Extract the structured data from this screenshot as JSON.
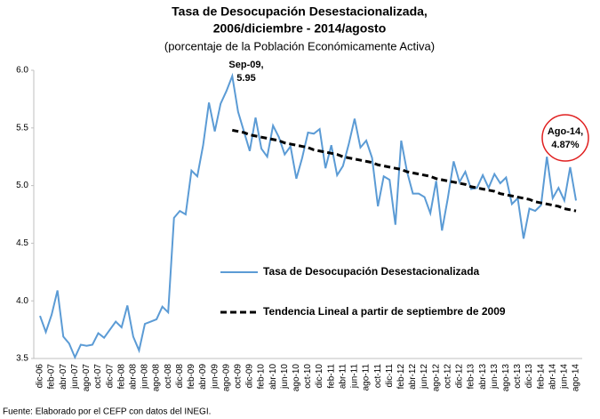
{
  "chart_data": {
    "type": "line",
    "title": "Tasa de Desocupación Desestacionalizada,",
    "title2": "2006/diciembre - 2014/agosto",
    "subtitle": "(porcentaje de la Población Económicamente Activa)",
    "source": "Fuente: Elaborado por el CEFP con datos del INEGI.",
    "categories": [
      "dic-06",
      null,
      "feb-07",
      null,
      "abr-07",
      null,
      "jun-07",
      null,
      "ago-07",
      null,
      "oct-07",
      null,
      "dic-07",
      null,
      "feb-08",
      null,
      "abr-08",
      null,
      "jun-08",
      null,
      "ago-08",
      null,
      "oct-08",
      null,
      "dic-08",
      null,
      "feb-09",
      null,
      "abr-09",
      null,
      "jun-09",
      null,
      "ago-09",
      null,
      "oct-09",
      null,
      "dic-09",
      null,
      "feb-10",
      null,
      "abr-10",
      null,
      "jun-10",
      null,
      "ago-10",
      null,
      "oct-10",
      null,
      "dic-10",
      null,
      "feb-11",
      null,
      "abr-11",
      null,
      "jun-11",
      null,
      "ago-11",
      null,
      "oct-11",
      null,
      "dic-11",
      null,
      "feb-12",
      null,
      "abr-12",
      null,
      "jun-12",
      null,
      "ago-12",
      null,
      "oct-12",
      null,
      "dic-12",
      null,
      "feb-13",
      null,
      "abr-13",
      null,
      "jun-13",
      null,
      "ago-13",
      null,
      "oct-13",
      null,
      "dic-13",
      null,
      "feb-14",
      null,
      "abr-14",
      null,
      "jun-14",
      null,
      "ago-14"
    ],
    "series": [
      {
        "name": "Tasa de Desocupación Desestacionalizada",
        "color": "#5b9bd5",
        "dashed": false,
        "values": [
          3.87,
          3.73,
          3.88,
          4.09,
          3.69,
          3.63,
          3.51,
          3.62,
          3.61,
          3.62,
          3.72,
          3.68,
          3.75,
          3.82,
          3.77,
          3.96,
          3.69,
          3.57,
          3.8,
          3.82,
          3.84,
          3.95,
          3.9,
          4.72,
          4.78,
          4.75,
          5.13,
          5.08,
          5.35,
          5.72,
          5.47,
          5.71,
          5.82,
          5.95,
          5.64,
          5.47,
          5.3,
          5.59,
          5.32,
          5.25,
          5.52,
          5.42,
          5.27,
          5.34,
          5.06,
          5.24,
          5.46,
          5.45,
          5.49,
          5.15,
          5.35,
          5.09,
          5.17,
          5.36,
          5.58,
          5.33,
          5.39,
          5.24,
          4.82,
          5.08,
          5.05,
          4.66,
          5.39,
          5.12,
          4.93,
          4.93,
          4.9,
          4.76,
          5.04,
          4.61,
          4.89,
          5.21,
          5.03,
          5.12,
          4.97,
          4.98,
          5.09,
          4.98,
          5.1,
          5.02,
          5.07,
          4.84,
          4.89,
          4.54,
          4.8,
          4.78,
          4.83,
          5.25,
          4.89,
          4.98,
          4.87,
          5.16,
          4.87
        ]
      },
      {
        "name": "Tendencia Lineal a partir de septiembre de 2009",
        "color": "#000000",
        "dashed": true,
        "values": [
          null,
          null,
          null,
          null,
          null,
          null,
          null,
          null,
          null,
          null,
          null,
          null,
          null,
          null,
          null,
          null,
          null,
          null,
          null,
          null,
          null,
          null,
          null,
          null,
          null,
          null,
          null,
          null,
          null,
          null,
          null,
          null,
          null,
          5.48,
          5.47,
          5.46,
          5.44,
          5.43,
          5.42,
          5.41,
          5.4,
          5.39,
          5.37,
          5.36,
          5.35,
          5.34,
          5.33,
          5.31,
          5.3,
          5.29,
          5.28,
          5.27,
          5.25,
          5.24,
          5.23,
          5.22,
          5.21,
          5.2,
          5.18,
          5.17,
          5.16,
          5.15,
          5.14,
          5.12,
          5.11,
          5.1,
          5.09,
          5.08,
          5.06,
          5.05,
          5.04,
          5.03,
          5.02,
          5.01,
          4.99,
          4.98,
          4.97,
          4.96,
          4.95,
          4.93,
          4.92,
          4.91,
          4.9,
          4.89,
          4.88,
          4.86,
          4.85,
          4.84,
          4.83,
          4.82,
          4.8,
          4.79,
          4.78
        ]
      }
    ],
    "annotations": [
      {
        "lines": [
          "Sep-09,",
          "5.95"
        ]
      },
      {
        "lines": [
          "Ago-14,",
          "4.87%"
        ],
        "circle_color": "#e02020"
      }
    ],
    "ylim": [
      3.5,
      6.0
    ],
    "yticks": [
      {
        "value": 3.5,
        "label": "3.5"
      },
      {
        "value": 4.0,
        "label": "4.0"
      },
      {
        "value": 4.5,
        "label": "4.5"
      },
      {
        "value": 5.0,
        "label": "5.0"
      },
      {
        "value": 5.5,
        "label": "5.5"
      },
      {
        "value": 6.0,
        "label": "6.0"
      }
    ],
    "grid": false
  }
}
